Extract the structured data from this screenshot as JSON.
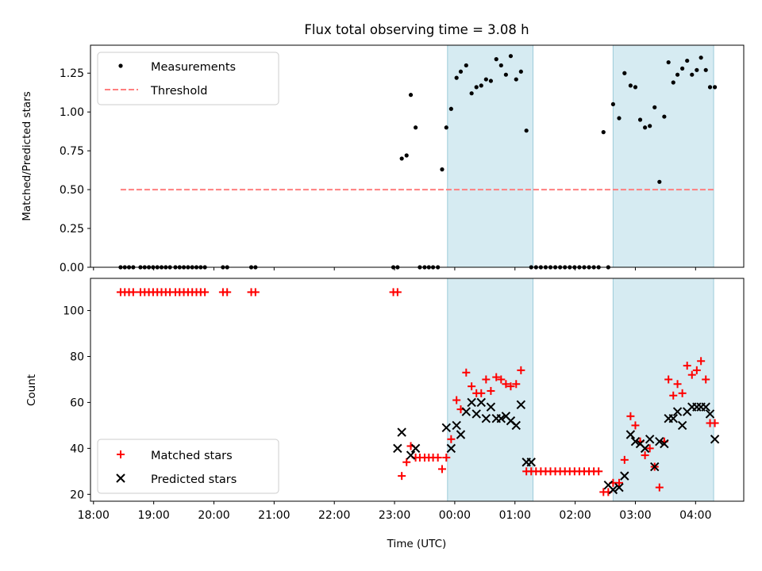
{
  "chart_data": [
    {
      "type": "scatter",
      "title": "Flux total observing time = 3.08 h",
      "xlabel": "",
      "ylabel": "Matched/Predicted stars",
      "xlim": [
        -0.05,
        10.8
      ],
      "ylim": [
        0,
        1.43
      ],
      "yticks": [
        0.0,
        0.25,
        0.5,
        0.75,
        1.0,
        1.25
      ],
      "ytick_labels": [
        "0.00",
        "0.25",
        "0.50",
        "0.75",
        "1.00",
        "1.25"
      ],
      "shaded_intervals": [
        [
          5.88,
          7.3
        ],
        [
          8.63,
          10.3
        ]
      ],
      "legend": {
        "position": "top-left",
        "entries": [
          "Measurements",
          "Threshold"
        ]
      },
      "threshold": {
        "name": "Threshold",
        "value": 0.5,
        "x_range": [
          0.45,
          10.3
        ],
        "color": "#ff7f7f"
      },
      "series": [
        {
          "name": "Measurements",
          "color": "#000000",
          "x": [
            0.45,
            0.52,
            0.59,
            0.66,
            0.78,
            0.85,
            0.92,
            0.99,
            1.06,
            1.13,
            1.2,
            1.27,
            1.36,
            1.43,
            1.5,
            1.57,
            1.64,
            1.71,
            1.78,
            1.85,
            2.15,
            2.22,
            2.62,
            2.69,
            4.98,
            5.05,
            5.12,
            5.2,
            5.27,
            5.35,
            5.42,
            5.5,
            5.57,
            5.64,
            5.72,
            5.79,
            5.86,
            5.94,
            6.03,
            6.1,
            6.19,
            6.28,
            6.36,
            6.44,
            6.52,
            6.6,
            6.69,
            6.77,
            6.85,
            6.93,
            7.02,
            7.1,
            7.19,
            7.27,
            7.35,
            7.43,
            7.51,
            7.59,
            7.67,
            7.75,
            7.83,
            7.91,
            7.99,
            8.07,
            8.15,
            8.23,
            8.31,
            8.39,
            8.47,
            8.55,
            8.63,
            8.73,
            8.82,
            8.92,
            9.0,
            9.08,
            9.16,
            9.24,
            9.32,
            9.4,
            9.48,
            9.55,
            9.63,
            9.7,
            9.78,
            9.86,
            9.94,
            10.02,
            10.09,
            10.17,
            10.24,
            10.32
          ],
          "y": [
            0,
            0,
            0,
            0,
            0,
            0,
            0,
            0,
            0,
            0,
            0,
            0,
            0,
            0,
            0,
            0,
            0,
            0,
            0,
            0,
            0,
            0,
            0,
            0,
            0,
            0,
            0.7,
            0.72,
            1.11,
            0.9,
            0,
            0,
            0,
            0,
            0,
            0.63,
            0.9,
            1.02,
            1.22,
            1.26,
            1.3,
            1.12,
            1.16,
            1.17,
            1.21,
            1.2,
            1.34,
            1.3,
            1.24,
            1.36,
            1.21,
            1.26,
            0.88,
            0,
            0,
            0,
            0,
            0,
            0,
            0,
            0,
            0,
            0,
            0,
            0,
            0,
            0,
            0,
            0.87,
            0,
            1.05,
            0.96,
            1.25,
            1.17,
            1.16,
            0.95,
            0.9,
            0.91,
            1.03,
            0.55,
            0.97,
            1.32,
            1.19,
            1.24,
            1.28,
            1.33,
            1.24,
            1.27,
            1.35,
            1.27,
            1.16,
            1.16
          ]
        }
      ]
    },
    {
      "type": "scatter",
      "title": "",
      "xlabel": "Time (UTC)",
      "ylabel": "Count",
      "xlim": [
        -0.05,
        10.8
      ],
      "ylim": [
        17,
        114
      ],
      "yticks": [
        20,
        40,
        60,
        80,
        100
      ],
      "ytick_labels": [
        "20",
        "40",
        "60",
        "80",
        "100"
      ],
      "xticks": [
        0,
        1,
        2,
        3,
        4,
        5,
        6,
        7,
        8,
        9,
        10
      ],
      "xtick_labels": [
        "18:00",
        "19:00",
        "20:00",
        "21:00",
        "22:00",
        "23:00",
        "00:00",
        "01:00",
        "02:00",
        "03:00",
        "04:00"
      ],
      "shaded_intervals": [
        [
          5.88,
          7.3
        ],
        [
          8.63,
          10.3
        ]
      ],
      "legend": {
        "position": "bottom-left",
        "entries": [
          "Matched stars",
          "Predicted stars"
        ]
      },
      "series": [
        {
          "name": "Matched stars",
          "marker": "+",
          "color": "#ff0000",
          "x": [
            0.45,
            0.52,
            0.59,
            0.66,
            0.78,
            0.85,
            0.92,
            0.99,
            1.06,
            1.13,
            1.2,
            1.27,
            1.36,
            1.43,
            1.5,
            1.57,
            1.64,
            1.71,
            1.78,
            1.85,
            2.15,
            2.22,
            2.62,
            2.69,
            4.98,
            5.05,
            5.12,
            5.2,
            5.27,
            5.35,
            5.42,
            5.5,
            5.57,
            5.64,
            5.72,
            5.79,
            5.86,
            5.94,
            6.03,
            6.1,
            6.19,
            6.28,
            6.36,
            6.44,
            6.52,
            6.6,
            6.69,
            6.77,
            6.85,
            6.93,
            7.02,
            7.1,
            7.19,
            7.27,
            7.35,
            7.43,
            7.51,
            7.59,
            7.67,
            7.75,
            7.83,
            7.91,
            7.99,
            8.07,
            8.15,
            8.23,
            8.31,
            8.39,
            8.47,
            8.55,
            8.63,
            8.73,
            8.82,
            8.92,
            9.0,
            9.08,
            9.16,
            9.24,
            9.32,
            9.4,
            9.48,
            9.55,
            9.63,
            9.7,
            9.78,
            9.86,
            9.94,
            10.02,
            10.09,
            10.17,
            10.24,
            10.32
          ],
          "y": [
            108,
            108,
            108,
            108,
            108,
            108,
            108,
            108,
            108,
            108,
            108,
            108,
            108,
            108,
            108,
            108,
            108,
            108,
            108,
            108,
            108,
            108,
            108,
            108,
            108,
            108,
            28,
            34,
            41,
            36,
            36,
            36,
            36,
            36,
            36,
            31,
            36,
            44,
            61,
            57,
            73,
            67,
            64,
            64,
            70,
            65,
            71,
            70,
            68,
            67,
            68,
            74,
            30,
            30,
            30,
            30,
            30,
            30,
            30,
            30,
            30,
            30,
            30,
            30,
            30,
            30,
            30,
            30,
            21,
            21,
            25,
            25,
            35,
            54,
            50,
            43,
            37,
            40,
            32,
            23,
            43,
            70,
            63,
            68,
            64,
            76,
            72,
            74,
            78,
            70,
            51,
            51
          ]
        },
        {
          "name": "Predicted stars",
          "marker": "x",
          "color": "#000000",
          "x": [
            5.05,
            5.12,
            5.27,
            5.35,
            5.86,
            5.94,
            6.03,
            6.1,
            6.19,
            6.28,
            6.36,
            6.44,
            6.52,
            6.6,
            6.69,
            6.77,
            6.85,
            6.93,
            7.02,
            7.1,
            7.19,
            7.27,
            8.55,
            8.63,
            8.73,
            8.82,
            8.92,
            9.0,
            9.08,
            9.16,
            9.24,
            9.32,
            9.4,
            9.48,
            9.55,
            9.63,
            9.7,
            9.78,
            9.86,
            9.94,
            10.02,
            10.09,
            10.17,
            10.24,
            10.32
          ],
          "y": [
            40,
            47,
            37,
            40,
            49,
            40,
            50,
            46,
            56,
            60,
            55,
            60,
            53,
            58,
            53,
            53,
            54,
            52,
            50,
            59,
            34,
            34,
            24,
            22,
            23,
            28,
            46,
            43,
            42,
            40,
            44,
            32,
            43,
            42,
            53,
            53,
            56,
            50,
            56,
            58,
            58,
            58,
            58,
            55,
            44
          ]
        }
      ]
    }
  ]
}
